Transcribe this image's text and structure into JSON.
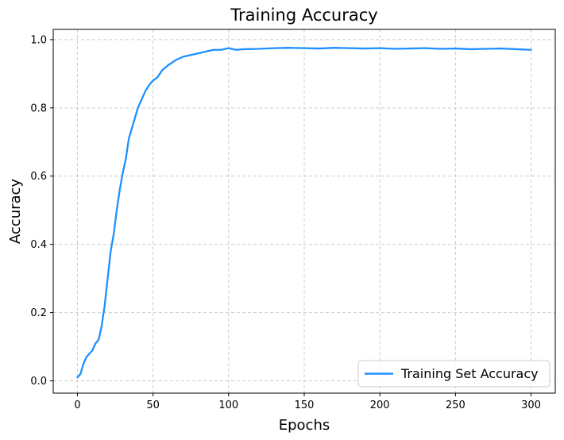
{
  "chart_data": {
    "type": "line",
    "title": "Training Accuracy",
    "xlabel": "Epochs",
    "ylabel": "Accuracy",
    "xlim": [
      -16,
      316
    ],
    "ylim": [
      -0.036,
      1.03
    ],
    "xticks": [
      0,
      50,
      100,
      150,
      200,
      250,
      300
    ],
    "yticks": [
      0.0,
      0.2,
      0.4,
      0.6,
      0.8,
      1.0
    ],
    "xtick_labels": [
      "0",
      "50",
      "100",
      "150",
      "200",
      "250",
      "300"
    ],
    "ytick_labels": [
      "0.0",
      "0.2",
      "0.4",
      "0.6",
      "0.8",
      "1.0"
    ],
    "grid": true,
    "legend_position": "bottom-right",
    "series": [
      {
        "name": "Training Set Accuracy",
        "color": "#1e90ff",
        "x": [
          0,
          2,
          4,
          6,
          8,
          10,
          12,
          14,
          16,
          18,
          20,
          22,
          24,
          26,
          28,
          30,
          32,
          34,
          36,
          38,
          40,
          42,
          45,
          48,
          50,
          53,
          56,
          60,
          65,
          70,
          75,
          80,
          85,
          90,
          95,
          100,
          105,
          110,
          120,
          130,
          140,
          150,
          160,
          170,
          180,
          190,
          200,
          210,
          220,
          230,
          240,
          250,
          260,
          270,
          280,
          290,
          300
        ],
        "y": [
          0.01,
          0.02,
          0.05,
          0.07,
          0.08,
          0.09,
          0.11,
          0.12,
          0.16,
          0.22,
          0.3,
          0.38,
          0.43,
          0.5,
          0.56,
          0.61,
          0.65,
          0.71,
          0.74,
          0.77,
          0.8,
          0.82,
          0.85,
          0.87,
          0.88,
          0.89,
          0.91,
          0.925,
          0.94,
          0.95,
          0.955,
          0.96,
          0.965,
          0.97,
          0.97,
          0.975,
          0.97,
          0.972,
          0.973,
          0.975,
          0.976,
          0.975,
          0.974,
          0.976,
          0.975,
          0.974,
          0.975,
          0.973,
          0.974,
          0.975,
          0.973,
          0.974,
          0.972,
          0.973,
          0.974,
          0.972,
          0.97
        ]
      }
    ]
  }
}
